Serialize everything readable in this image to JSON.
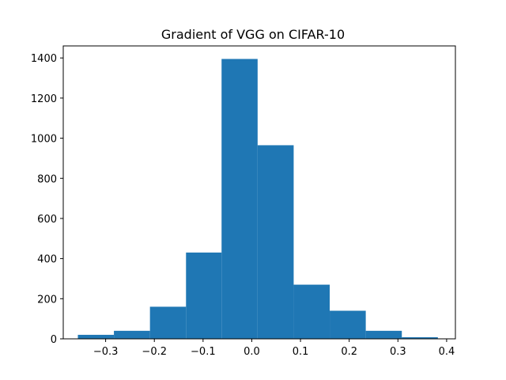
{
  "chart_data": {
    "type": "bar",
    "title": "Gradient of VGG on CIFAR-10",
    "xlabel": "",
    "ylabel": "",
    "xlim": [
      -0.387,
      0.418
    ],
    "ylim": [
      0,
      1460
    ],
    "bin_edges": [
      -0.357,
      -0.283,
      -0.209,
      -0.135,
      -0.062,
      0.012,
      0.086,
      0.16,
      0.234,
      0.308,
      0.382
    ],
    "values": [
      20,
      40,
      160,
      430,
      1395,
      965,
      270,
      140,
      40,
      8
    ],
    "x_ticks": [
      -0.3,
      -0.2,
      -0.1,
      0.0,
      0.1,
      0.2,
      0.3,
      0.4
    ],
    "x_tick_labels": [
      "−0.3",
      "−0.2",
      "−0.1",
      "0.0",
      "0.1",
      "0.2",
      "0.3",
      "0.4"
    ],
    "y_ticks": [
      0,
      200,
      400,
      600,
      800,
      1000,
      1200,
      1400
    ],
    "y_tick_labels": [
      "0",
      "200",
      "400",
      "600",
      "800",
      "1000",
      "1200",
      "1400"
    ],
    "bar_color": "#1f77b4",
    "grid": false,
    "legend": "none"
  }
}
